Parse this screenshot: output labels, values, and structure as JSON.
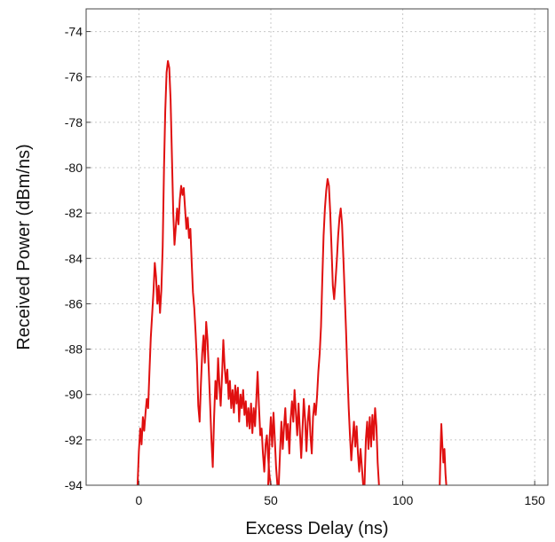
{
  "chart_data": {
    "type": "line",
    "title": "",
    "xlabel": "Excess Delay (ns)",
    "ylabel": "Received Power (dBm/ns)",
    "xlim": [
      -20,
      155
    ],
    "ylim": [
      -94,
      -73
    ],
    "xticks": [
      0,
      50,
      100,
      150
    ],
    "yticks": [
      -74,
      -76,
      -78,
      -80,
      -82,
      -84,
      -86,
      -88,
      -90,
      -92,
      -94
    ],
    "grid": true,
    "legend": "none",
    "series": [
      {
        "color": "#e01010",
        "segments": [
          [
            [
              -0.5,
              -94
            ],
            [
              0,
              -92.5
            ],
            [
              0.5,
              -91.5
            ],
            [
              1,
              -92.2
            ],
            [
              1.5,
              -91
            ],
            [
              2,
              -91.6
            ],
            [
              2.5,
              -90.8
            ],
            [
              3,
              -90.2
            ],
            [
              3.5,
              -90.6
            ],
            [
              4,
              -89
            ],
            [
              4.5,
              -87.5
            ],
            [
              5,
              -86.5
            ],
            [
              5.5,
              -85.5
            ],
            [
              6,
              -84.2
            ],
            [
              6.5,
              -84.8
            ],
            [
              7,
              -86
            ],
            [
              7.5,
              -85.2
            ],
            [
              8,
              -86.4
            ],
            [
              8.5,
              -85.4
            ],
            [
              9,
              -83.5
            ],
            [
              9.5,
              -80
            ],
            [
              10,
              -77.5
            ],
            [
              10.5,
              -75.8
            ],
            [
              11,
              -75.3
            ],
            [
              11.5,
              -75.6
            ],
            [
              12,
              -77
            ],
            [
              12.5,
              -79.5
            ],
            [
              13,
              -82
            ],
            [
              13.5,
              -83.4
            ],
            [
              14,
              -82.6
            ],
            [
              14.5,
              -81.8
            ],
            [
              15,
              -82.5
            ],
            [
              15.5,
              -81.4
            ],
            [
              16,
              -80.8
            ],
            [
              16.5,
              -81.2
            ],
            [
              17,
              -80.9
            ],
            [
              17.5,
              -81.8
            ],
            [
              18,
              -82.7
            ],
            [
              18.5,
              -82.2
            ],
            [
              19,
              -83.1
            ],
            [
              19.5,
              -82.7
            ],
            [
              20,
              -84.2
            ],
            [
              20.5,
              -85.5
            ],
            [
              21,
              -86.2
            ],
            [
              21.5,
              -87.3
            ],
            [
              22,
              -88.6
            ],
            [
              22.5,
              -90.5
            ],
            [
              23,
              -91.2
            ],
            [
              23.5,
              -89.5
            ],
            [
              24,
              -88.2
            ],
            [
              24.5,
              -87.4
            ],
            [
              25,
              -88.6
            ],
            [
              25.5,
              -86.8
            ],
            [
              26,
              -87.6
            ],
            [
              26.5,
              -89
            ],
            [
              27,
              -90.5
            ],
            [
              27.5,
              -92
            ],
            [
              28,
              -93.2
            ],
            [
              28.5,
              -91
            ],
            [
              29,
              -89.4
            ],
            [
              29.5,
              -90.2
            ],
            [
              30,
              -88.4
            ],
            [
              30.5,
              -89.6
            ],
            [
              31,
              -90.5
            ],
            [
              31.5,
              -89.2
            ],
            [
              32,
              -87.6
            ],
            [
              32.5,
              -88.8
            ],
            [
              33,
              -89.5
            ],
            [
              33.5,
              -88.9
            ],
            [
              34,
              -90.2
            ],
            [
              34.5,
              -89.4
            ],
            [
              35,
              -90.6
            ],
            [
              35.5,
              -89.8
            ],
            [
              36,
              -90.8
            ],
            [
              36.5,
              -89.6
            ],
            [
              37,
              -90.4
            ],
            [
              37.5,
              -89.7
            ],
            [
              38,
              -91.2
            ],
            [
              38.5,
              -90
            ],
            [
              39,
              -90.6
            ],
            [
              39.5,
              -89.8
            ],
            [
              40,
              -90.9
            ],
            [
              40.5,
              -90.3
            ],
            [
              41,
              -91.4
            ],
            [
              41.5,
              -90.6
            ],
            [
              42,
              -91.5
            ],
            [
              42.5,
              -90.4
            ],
            [
              43,
              -91.7
            ],
            [
              43.5,
              -90.6
            ],
            [
              44,
              -91.4
            ],
            [
              44.5,
              -90.2
            ],
            [
              45,
              -89
            ],
            [
              45.5,
              -90.5
            ],
            [
              46,
              -91.8
            ],
            [
              46.5,
              -91.5
            ],
            [
              47,
              -92.6
            ],
            [
              47.5,
              -93.4
            ],
            [
              48,
              -92.2
            ],
            [
              48.5,
              -91.8
            ],
            [
              49,
              -92.8
            ],
            [
              49.5,
              -93.6
            ],
            [
              50,
              -94
            ]
          ],
          [
            [
              49,
              -94
            ],
            [
              49.5,
              -92
            ],
            [
              50,
              -91
            ],
            [
              50.5,
              -92.3
            ],
            [
              51,
              -90.8
            ],
            [
              51.5,
              -92
            ],
            [
              52,
              -93.2
            ],
            [
              52.5,
              -94
            ]
          ],
          [
            [
              53,
              -94
            ],
            [
              53.5,
              -92.5
            ],
            [
              54,
              -91.2
            ],
            [
              54.5,
              -92.4
            ],
            [
              55,
              -91.4
            ],
            [
              55.5,
              -90.6
            ],
            [
              56,
              -92
            ],
            [
              56.5,
              -91.3
            ],
            [
              57,
              -92.6
            ],
            [
              57.5,
              -91.1
            ],
            [
              58,
              -90.3
            ],
            [
              58.5,
              -91.2
            ],
            [
              59,
              -89.8
            ],
            [
              59.5,
              -90.8
            ],
            [
              60,
              -91.8
            ],
            [
              60.5,
              -90.4
            ],
            [
              61,
              -91.6
            ],
            [
              61.5,
              -92.8
            ],
            [
              62,
              -91.5
            ],
            [
              62.5,
              -90.2
            ],
            [
              63,
              -91.1
            ],
            [
              63.5,
              -92.5
            ],
            [
              64,
              -91.2
            ],
            [
              64.5,
              -90.5
            ],
            [
              65,
              -91.8
            ],
            [
              65.5,
              -92.6
            ],
            [
              66,
              -91
            ],
            [
              66.5,
              -90.4
            ],
            [
              67,
              -90.9
            ],
            [
              67.5,
              -90.1
            ],
            [
              68,
              -89
            ],
            [
              68.5,
              -88.2
            ],
            [
              69,
              -87
            ],
            [
              69.5,
              -85
            ],
            [
              70,
              -83
            ],
            [
              70.5,
              -81.8
            ],
            [
              71,
              -81
            ],
            [
              71.5,
              -80.5
            ],
            [
              72,
              -80.8
            ],
            [
              72.5,
              -82
            ],
            [
              73,
              -83.5
            ],
            [
              73.5,
              -85.2
            ],
            [
              74,
              -85.8
            ],
            [
              74.5,
              -85
            ],
            [
              75,
              -84.1
            ],
            [
              75.5,
              -83
            ],
            [
              76,
              -82.2
            ],
            [
              76.5,
              -81.8
            ],
            [
              77,
              -82.5
            ],
            [
              77.5,
              -84
            ],
            [
              78,
              -85.6
            ],
            [
              78.5,
              -87.2
            ],
            [
              79,
              -89
            ],
            [
              79.5,
              -90.6
            ],
            [
              80,
              -91.8
            ],
            [
              80.5,
              -92.9
            ],
            [
              81,
              -92
            ],
            [
              81.5,
              -91.2
            ],
            [
              82,
              -92.3
            ],
            [
              82.5,
              -91.4
            ],
            [
              83,
              -92.6
            ],
            [
              83.5,
              -93.4
            ],
            [
              84,
              -92.4
            ],
            [
              84.5,
              -93.2
            ],
            [
              85,
              -94
            ]
          ],
          [
            [
              85.5,
              -94
            ],
            [
              86,
              -92
            ],
            [
              86.5,
              -91.2
            ],
            [
              87,
              -92.4
            ],
            [
              87.5,
              -91
            ],
            [
              88,
              -92.3
            ],
            [
              88.5,
              -90.9
            ],
            [
              89,
              -92
            ],
            [
              89.5,
              -90.6
            ],
            [
              90,
              -91.4
            ],
            [
              90.5,
              -93
            ],
            [
              91,
              -94
            ]
          ],
          [
            [
              114,
              -94
            ],
            [
              114.3,
              -92.5
            ],
            [
              114.6,
              -91.3
            ],
            [
              115,
              -92.2
            ],
            [
              115.4,
              -93
            ],
            [
              115.8,
              -92.4
            ],
            [
              116.2,
              -93.5
            ],
            [
              116.5,
              -94
            ]
          ]
        ]
      }
    ]
  }
}
